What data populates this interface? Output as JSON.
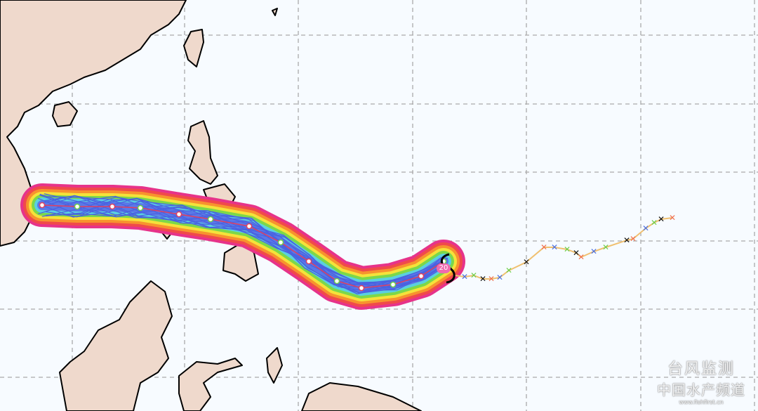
{
  "map": {
    "ocean_color": "#f7fbff",
    "land_color": "#efd9cc",
    "grid_style": "dashed gray",
    "typhoon_symbol": "typhoon-icon",
    "current_position_label": "20",
    "observed_track_color": "#f0c070",
    "marker_colors": [
      "#4a6ee0",
      "#6ccf4a",
      "#111111",
      "#f07050"
    ],
    "probability_band_colors": [
      "#e6338a",
      "#f04a4a",
      "#f7932e",
      "#f5e23a",
      "#7cd84a",
      "#5ad0e0",
      "#5a78e8"
    ]
  },
  "watermark": {
    "line1": "台风监测",
    "line2": "中国水产频道",
    "line3": "www.fishfirst.cn"
  }
}
